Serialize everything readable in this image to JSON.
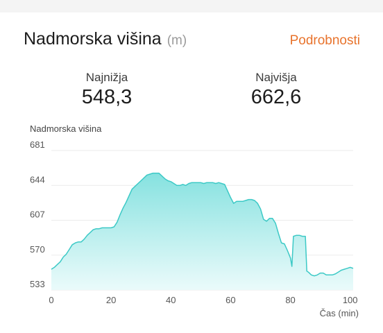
{
  "header": {
    "title": "Nadmorska višina",
    "unit": "(m)",
    "details_link": "Podrobnosti"
  },
  "stats": {
    "min_label": "Najnižja",
    "min_value": "548,3",
    "max_label": "Najvišja",
    "max_value": "662,6"
  },
  "colors": {
    "accent": "#e8732c",
    "line": "#3cc9c6",
    "fill_top": "#7fe0de",
    "fill_bottom": "#e8fafa"
  },
  "chart_data": {
    "type": "area",
    "ylabel": "Nadmorska višina",
    "xlabel": "Čas (min)",
    "ylim": [
      533,
      681
    ],
    "xlim": [
      0,
      101
    ],
    "yticks": [
      "681",
      "644",
      "607",
      "570",
      "533"
    ],
    "ytick_values": [
      681,
      644,
      607,
      570,
      533
    ],
    "xticks": [
      "0",
      "20",
      "40",
      "60",
      "80",
      "100"
    ],
    "xtick_values": [
      0,
      20,
      40,
      60,
      80,
      100
    ],
    "grid": true,
    "series": [
      {
        "x": [
          0,
          1,
          2,
          3,
          4,
          5,
          6,
          7,
          8,
          9,
          10,
          11,
          12,
          13,
          14,
          15,
          16,
          17,
          18,
          19,
          20,
          21,
          22,
          23,
          24,
          25,
          26,
          27,
          28,
          29,
          30,
          31,
          32,
          33,
          34,
          35,
          36,
          37,
          38,
          39,
          40,
          41,
          42,
          43,
          44,
          45,
          46,
          47,
          48,
          49,
          50,
          51,
          52,
          53,
          54,
          55,
          56,
          57,
          58,
          59,
          60,
          61,
          62,
          63,
          64,
          65,
          66,
          67,
          68,
          69,
          70,
          71,
          72,
          73,
          74,
          75,
          76,
          77,
          78,
          79,
          80,
          80.5,
          81,
          82,
          83,
          84,
          85,
          85.5,
          86,
          87,
          88,
          89,
          90,
          91,
          92,
          93,
          94,
          95,
          96,
          97,
          98,
          99,
          100,
          101
        ],
        "y": [
          555,
          557,
          560,
          563,
          568,
          571,
          576,
          581,
          583,
          584,
          584,
          587,
          591,
          594,
          597,
          598,
          598,
          599,
          599,
          599,
          599,
          600,
          605,
          613,
          620,
          626,
          633,
          640,
          643,
          646,
          649,
          652,
          655,
          656,
          657,
          657,
          657,
          654,
          651,
          649,
          648,
          646,
          644,
          644,
          645,
          644,
          646,
          647,
          647,
          647,
          647,
          646,
          647,
          647,
          647,
          646,
          647,
          646,
          645,
          638,
          631,
          625,
          627,
          627,
          627,
          628,
          629,
          629,
          628,
          625,
          619,
          608,
          606,
          609,
          609,
          604,
          593,
          583,
          582,
          575,
          567,
          558,
          590,
          591,
          591,
          590,
          590,
          553,
          552,
          549,
          548,
          549,
          551,
          551,
          549,
          549,
          549,
          550,
          552,
          554,
          555,
          556,
          557,
          556
        ]
      }
    ]
  }
}
